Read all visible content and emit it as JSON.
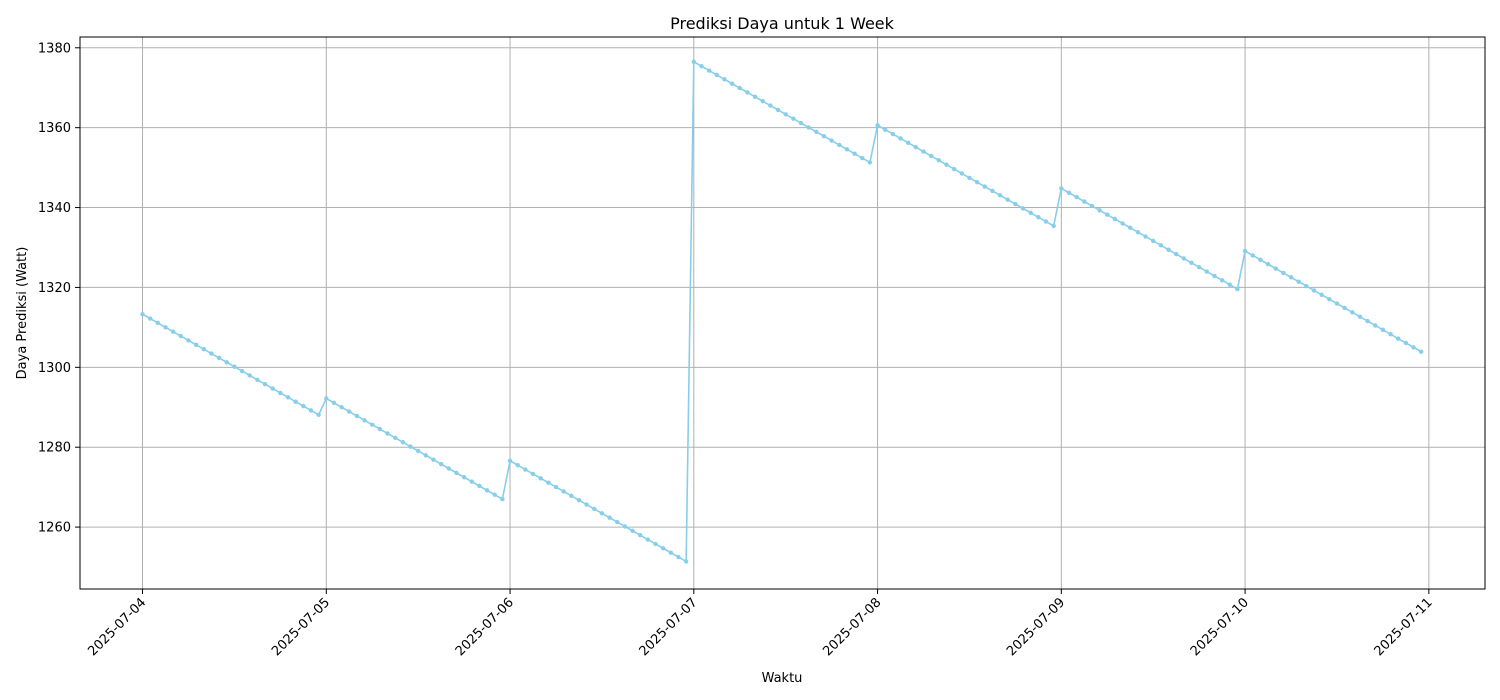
{
  "chart_data": {
    "type": "line",
    "title": "Prediksi Daya untuk 1 Week",
    "xlabel": "Waktu",
    "ylabel": "Daya Prediksi (Watt)",
    "x_tick_labels": [
      "2025-07-04",
      "2025-07-05",
      "2025-07-06",
      "2025-07-07",
      "2025-07-08",
      "2025-07-09",
      "2025-07-10",
      "2025-07-11"
    ],
    "y_tick_labels": [
      "1260",
      "1280",
      "1300",
      "1320",
      "1340",
      "1360",
      "1380"
    ],
    "ylim": [
      1244.5,
      1382.7
    ],
    "xlim": [
      "2025-07-03T15:50",
      "2025-07-11T07:20"
    ],
    "grid": true,
    "series": [
      {
        "color": "#87CEEB",
        "marker": "circle",
        "points": [
          {
            "day": "2025-07-04",
            "hourly": {
              "start": 1313.3,
              "end": 1288.1
            }
          },
          {
            "day": "2025-07-05",
            "hourly": {
              "start": 1292.2,
              "end": 1267.0
            }
          },
          {
            "day": "2025-07-06",
            "hourly": {
              "start": 1276.6,
              "end": 1251.4
            }
          },
          {
            "day": "2025-07-07",
            "hourly": {
              "start": 1376.5,
              "end": 1351.3
            }
          },
          {
            "day": "2025-07-08",
            "hourly": {
              "start": 1360.6,
              "end": 1335.4
            }
          },
          {
            "day": "2025-07-09",
            "hourly": {
              "start": 1344.8,
              "end": 1319.6
            }
          },
          {
            "day": "2025-07-10",
            "hourly": {
              "start": 1329.1,
              "end": 1303.9
            }
          }
        ]
      }
    ]
  },
  "colors": {
    "line": "#87CEEB",
    "grid": "#b0b0b0",
    "axis": "#000000"
  }
}
